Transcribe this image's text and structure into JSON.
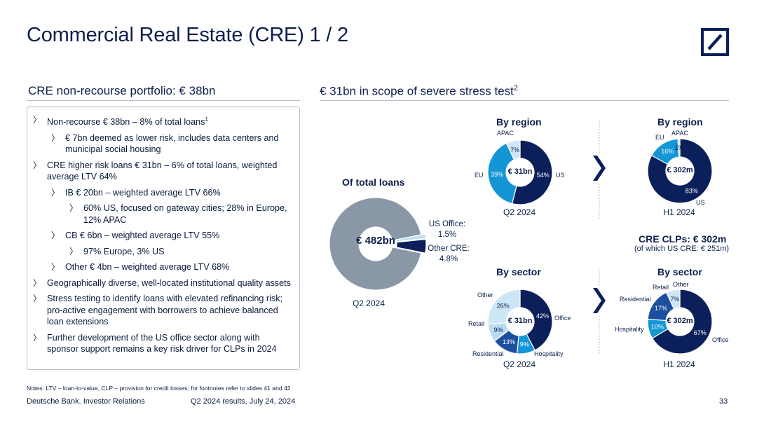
{
  "title": "Commercial Real Estate (CRE) 1 / 2",
  "left_section": {
    "heading": "CRE non-recourse portfolio: € 38bn",
    "bullets": [
      {
        "level": 1,
        "text": "Non-recourse € 38bn – 8% of total loans",
        "sup": "1"
      },
      {
        "level": 2,
        "text": "€ 7bn deemed as lower risk, includes data centers and municipal social housing"
      },
      {
        "level": 1,
        "text": "CRE higher risk loans € 31bn – 6% of total loans, weighted average LTV 64%"
      },
      {
        "level": 2,
        "text": "IB € 20bn – weighted average LTV 66%"
      },
      {
        "level": 3,
        "text": "60% US, focused on gateway cities; 28% in Europe, 12% APAC"
      },
      {
        "level": 2,
        "text": "CB € 6bn – weighted average LTV 55%"
      },
      {
        "level": 3,
        "text": "97% Europe, 3% US"
      },
      {
        "level": 2,
        "text": "Other € 4bn – weighted average LTV 68%"
      },
      {
        "level": 1,
        "text": "Geographically diverse, well-located institutional quality assets"
      },
      {
        "level": 1,
        "text": "Stress testing to identify loans with elevated refinancing risk; pro-active engagement with borrowers to achieve balanced loan extensions"
      },
      {
        "level": 1,
        "text": "Further development of the US office sector along with sponsor support remains a key risk driver for CLPs in 2024"
      }
    ]
  },
  "right_section": {
    "heading": "€ 31bn in scope of severe stress test",
    "heading_sup": "2",
    "clp_title": "CRE CLPs: € 302m",
    "clp_sub": "(of which US CRE: € 251m)"
  },
  "colors": {
    "navy": "#0b1f5a",
    "mid_blue": "#1496d6",
    "light_blue": "#cde6f5",
    "royal_blue": "#1d4fa0",
    "grey": "#8a97a6",
    "pale_blue": "#b9dcf2"
  },
  "chart_data": [
    {
      "id": "total",
      "type": "pie",
      "title": "Of total loans",
      "center": "€ 482bn",
      "caption": "Q2 2024",
      "slices": [
        {
          "name": "Rest",
          "value": 93.7,
          "color": "#8a97a6",
          "label": ""
        },
        {
          "name": "US Office",
          "value": 1.5,
          "color": "#b9dcf2",
          "label": "US Office:\n1.5%"
        },
        {
          "name": "Other CRE",
          "value": 4.8,
          "color": "#0b1f5a",
          "label": "Other CRE:\n4.8%"
        }
      ]
    },
    {
      "id": "region_q2",
      "type": "pie",
      "title": "By region",
      "center": "€ 31bn",
      "caption": "Q2 2024",
      "slices": [
        {
          "name": "US",
          "value": 54,
          "color": "#0b1f5a",
          "label": "54%"
        },
        {
          "name": "EU",
          "value": 39,
          "color": "#1496d6",
          "label": "39%"
        },
        {
          "name": "APAC",
          "value": 7,
          "color": "#cde6f5",
          "label": "7%"
        }
      ]
    },
    {
      "id": "region_h1",
      "type": "pie",
      "title": "By region",
      "center": "€ 302m",
      "caption": "H1 2024",
      "slices": [
        {
          "name": "US",
          "value": 83,
          "color": "#0b1f5a",
          "label": "83%"
        },
        {
          "name": "EU",
          "value": 16,
          "color": "#1496d6",
          "label": "16%"
        },
        {
          "name": "APAC",
          "value": 1,
          "color": "#cde6f5",
          "label": "1%"
        }
      ]
    },
    {
      "id": "sector_q2",
      "type": "pie",
      "title": "By sector",
      "center": "€ 31bn",
      "caption": "Q2 2024",
      "slices": [
        {
          "name": "Office",
          "value": 42,
          "color": "#0b1f5a",
          "label": "42%"
        },
        {
          "name": "Hospitality",
          "value": 9,
          "color": "#1496d6",
          "label": "9%"
        },
        {
          "name": "Residential",
          "value": 13,
          "color": "#1d4fa0",
          "label": "13%"
        },
        {
          "name": "Retail",
          "value": 9,
          "color": "#b9dcf2",
          "label": "9%"
        },
        {
          "name": "Other",
          "value": 26,
          "color": "#cde6f5",
          "label": "26%"
        }
      ]
    },
    {
      "id": "sector_h1",
      "type": "pie",
      "title": "By sector",
      "center": "€ 302m",
      "caption": "H1 2024",
      "slices": [
        {
          "name": "Office",
          "value": 67,
          "color": "#0b1f5a",
          "label": "67%"
        },
        {
          "name": "Hospitality",
          "value": 10,
          "color": "#1496d6",
          "label": "10%"
        },
        {
          "name": "Residential",
          "value": 17,
          "color": "#1d4fa0",
          "label": "17%"
        },
        {
          "name": "Retail",
          "value": 0,
          "color": "#b9dcf2",
          "label": "0%"
        },
        {
          "name": "Other",
          "value": 7,
          "color": "#cde6f5",
          "label": "7%"
        }
      ]
    }
  ],
  "notes": "Notes: LTV – loan-to-value, CLP – provision for credit losses; for footnotes refer to slides 41 and 42",
  "footer": {
    "left": "Deutsche Bank. Investor Relations",
    "middle": "Q2 2024 results, July 24, 2024",
    "page": "33"
  }
}
